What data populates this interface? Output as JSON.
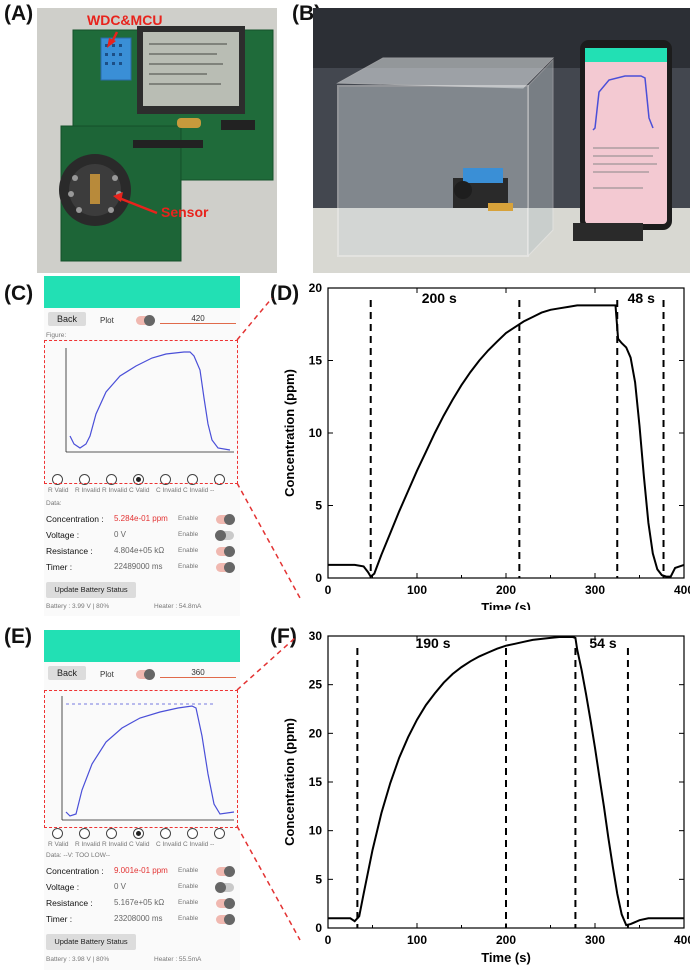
{
  "panel_labels": {
    "a": "(A)",
    "b": "(B)",
    "c": "(C)",
    "d": "(D)",
    "e": "(E)",
    "f": "(F)"
  },
  "photo_a": {
    "device_label": "WDC&MCU",
    "sensor_label": "Sensor",
    "label_color": "#e8231c"
  },
  "colors": {
    "app_header": "#22e0b4",
    "trace": "#4a4fd8",
    "callout": "#e33333"
  },
  "app_c": {
    "back": "Back",
    "plot": "Plot",
    "field_value": "420",
    "figure_label": "Figure:",
    "radio_labels": [
      "R Valid",
      "R Invalid",
      "R Invalid",
      "C Valid",
      "C Invalid",
      "C Invalid",
      "--"
    ],
    "selected_radio": 3,
    "data_label": "Data:",
    "rows": [
      {
        "name": "Concentration :",
        "value": "5.284e-01 ppm",
        "enable": "Enable",
        "toggle": "on"
      },
      {
        "name": "Voltage :",
        "value": "0 V",
        "enable": "Enable",
        "toggle": "off"
      },
      {
        "name": "Resistance :",
        "value": "4.804e+05 kΩ",
        "enable": "Enable",
        "toggle": "on"
      },
      {
        "name": "Timer :",
        "value": "22489000 ms",
        "enable": "Enable",
        "toggle": "on"
      }
    ],
    "update_button": "Update Battery Status",
    "battery": "Battery : 3.99 V | 80%",
    "heater": "Heater : 54.8mA"
  },
  "app_e": {
    "back": "Back",
    "plot": "Plot",
    "field_value": "360",
    "radio_labels": [
      "R Valid",
      "R Invalid",
      "R Invalid",
      "C Valid",
      "C Invalid",
      "C Invalid",
      "--"
    ],
    "selected_radio": 3,
    "data_label": "Data:  --V: TOO LOW--",
    "rows": [
      {
        "name": "Concentration :",
        "value": "9.001e-01 ppm",
        "enable": "Enable",
        "toggle": "on"
      },
      {
        "name": "Voltage :",
        "value": "0 V",
        "enable": "Enable",
        "toggle": "off"
      },
      {
        "name": "Resistance :",
        "value": "5.167e+05 kΩ",
        "enable": "Enable",
        "toggle": "on"
      },
      {
        "name": "Timer :",
        "value": "23208000 ms",
        "enable": "Enable",
        "toggle": "on"
      }
    ],
    "update_button": "Update Battery Status",
    "battery": "Battery : 3.98 V | 80%",
    "heater": "Heater : 55.5mA"
  },
  "chart_data": [
    {
      "panel": "D",
      "type": "line",
      "xlabel": "Time (s)",
      "ylabel": "Concentration (ppm)",
      "xlim": [
        0,
        400
      ],
      "ylim": [
        0,
        20
      ],
      "xticks": [
        0,
        100,
        200,
        300,
        400
      ],
      "yticks": [
        0,
        5,
        10,
        15,
        20
      ],
      "vlines": [
        48,
        215,
        325,
        377
      ],
      "annotations": [
        {
          "text": "200 s",
          "x": 125,
          "y": 19.3
        },
        {
          "text": "48 s",
          "x": 352,
          "y": 19.3
        }
      ],
      "series": [
        {
          "x": [
            0,
            30,
            40,
            45,
            48,
            52,
            60,
            70,
            80,
            90,
            100,
            110,
            120,
            130,
            140,
            150,
            160,
            170,
            180,
            190,
            200,
            210,
            220,
            230,
            240,
            250,
            260,
            270,
            280,
            290,
            300,
            310,
            320,
            323,
            325,
            326,
            330,
            335,
            340,
            345,
            350,
            355,
            360,
            365,
            370,
            375,
            380,
            385,
            390,
            400
          ],
          "y": [
            0.9,
            0.9,
            0.8,
            0.4,
            0.1,
            0.3,
            1.6,
            3.1,
            4.6,
            6.0,
            7.4,
            8.7,
            10.0,
            11.2,
            12.3,
            13.3,
            14.2,
            15.0,
            15.7,
            16.3,
            16.9,
            17.3,
            17.7,
            18.0,
            18.3,
            18.5,
            18.6,
            18.7,
            18.8,
            18.8,
            18.8,
            18.8,
            18.8,
            18.8,
            17.2,
            16.5,
            16.2,
            15.9,
            15.2,
            13.5,
            10.5,
            7.0,
            3.8,
            1.7,
            0.6,
            0.2,
            0.1,
            0.1,
            0.7,
            0.9
          ]
        }
      ]
    },
    {
      "panel": "F",
      "type": "line",
      "xlabel": "Time (s)",
      "ylabel": "Concentration (ppm)",
      "xlim": [
        0,
        400
      ],
      "ylim": [
        0,
        30
      ],
      "xticks": [
        0,
        100,
        200,
        300,
        400
      ],
      "yticks": [
        0,
        5,
        10,
        15,
        20,
        25,
        30
      ],
      "vlines": [
        33,
        200,
        278,
        337
      ],
      "annotations": [
        {
          "text": "190 s",
          "x": 118,
          "y": 29.3
        },
        {
          "text": "54 s",
          "x": 309,
          "y": 29.3
        }
      ],
      "series": [
        {
          "x": [
            0,
            20,
            25,
            30,
            35,
            40,
            50,
            60,
            70,
            80,
            90,
            100,
            110,
            120,
            130,
            140,
            150,
            160,
            170,
            180,
            190,
            200,
            210,
            220,
            230,
            240,
            250,
            260,
            270,
            275,
            278,
            280,
            285,
            290,
            295,
            300,
            305,
            310,
            315,
            320,
            325,
            330,
            335,
            340,
            350,
            360,
            380,
            400
          ],
          "y": [
            1.0,
            1.0,
            1.0,
            0.7,
            1.2,
            3.5,
            8.0,
            11.8,
            14.9,
            17.5,
            19.6,
            21.4,
            22.9,
            24.1,
            25.2,
            26.1,
            26.8,
            27.4,
            27.9,
            28.3,
            28.7,
            29.0,
            29.2,
            29.4,
            29.6,
            29.7,
            29.8,
            29.9,
            29.9,
            29.9,
            29.8,
            28.6,
            26.5,
            24.0,
            21.3,
            18.5,
            15.5,
            12.5,
            9.3,
            6.3,
            3.5,
            1.4,
            0.3,
            0.4,
            0.8,
            1.0,
            1.0,
            1.0
          ]
        }
      ]
    }
  ]
}
